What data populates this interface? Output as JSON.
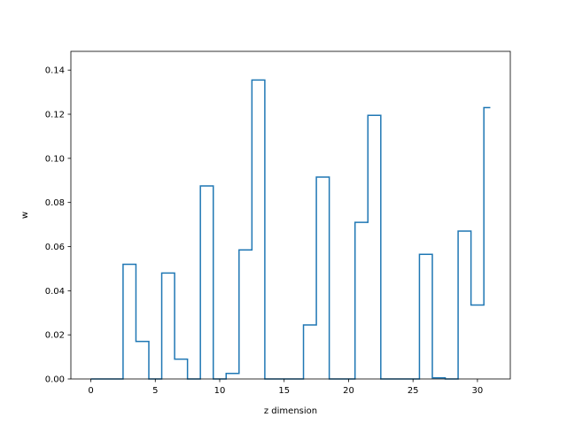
{
  "chart_data": {
    "type": "step",
    "xlabel": "z dimension",
    "ylabel": "w",
    "xlim": [
      -1.55,
      32.55
    ],
    "ylim": [
      0,
      0.1485
    ],
    "x": [
      0,
      1,
      2,
      3,
      4,
      5,
      6,
      7,
      8,
      9,
      10,
      11,
      12,
      13,
      14,
      15,
      16,
      17,
      18,
      19,
      20,
      21,
      22,
      23,
      24,
      25,
      26,
      27,
      28,
      29,
      30,
      31
    ],
    "values": [
      0.0,
      0.0,
      0.0,
      0.052,
      0.017,
      0.0,
      0.048,
      0.009,
      0.0,
      0.0875,
      0.0,
      0.0025,
      0.0585,
      0.1355,
      0.0,
      0.0,
      0.0,
      0.0245,
      0.0915,
      0.0,
      0.0,
      0.071,
      0.1195,
      0.0,
      0.0,
      0.0,
      0.0565,
      0.0005,
      0.0,
      0.067,
      0.0335,
      0.123
    ],
    "x_ticks": [
      0,
      5,
      10,
      15,
      20,
      25,
      30
    ],
    "x_tick_labels": [
      "0",
      "5",
      "10",
      "15",
      "20",
      "25",
      "30"
    ],
    "y_ticks": [
      0.0,
      0.02,
      0.04,
      0.06,
      0.08,
      0.1,
      0.12,
      0.14
    ],
    "y_tick_labels": [
      "0.00",
      "0.02",
      "0.04",
      "0.06",
      "0.08",
      "0.10",
      "0.12",
      "0.14"
    ],
    "line_color": "#1f77b4",
    "grid": false
  }
}
